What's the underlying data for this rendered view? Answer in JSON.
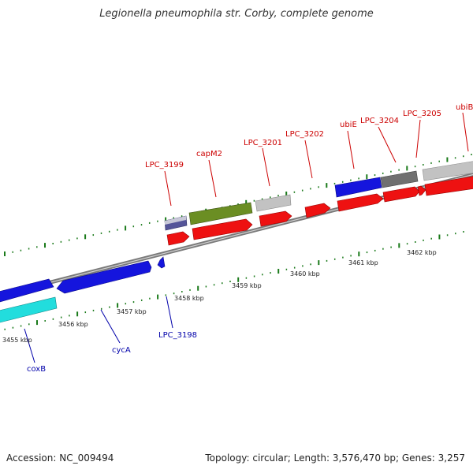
{
  "title": "Legionella pneumophila str. Corby, complete genome",
  "footer": {
    "accession": "Accession: NC_009494",
    "summary": "Topology: circular; Length: 3,576,470 bp; Genes: 3,257"
  },
  "colors": {
    "backbone": "#8c8c8c",
    "tick": "#1a7a1a",
    "label_forward": "#cc0000",
    "label_reverse": "#0000aa",
    "cds_red": "#ee1111",
    "cds_blue": "#1515dd",
    "cds_cyan": "#22dddd",
    "cds_olive": "#6b8e23",
    "cds_grey": "#bbbbbb",
    "cds_darkgrey": "#707070",
    "cds_navy": "#555599"
  },
  "scale_labels": [
    "3455 kbp",
    "3456 kbp",
    "3457 kbp",
    "3458 kbp",
    "3459 kbp",
    "3460 kbp",
    "3461 kbp",
    "3462 kbp"
  ],
  "forward_gene_labels": [
    "LPC_3199",
    "capM2",
    "LPC_3201",
    "LPC_3202",
    "ubiE",
    "LPC_3204",
    "LPC_3205",
    "ubiB"
  ],
  "reverse_gene_labels": [
    "coxB",
    "cycA",
    "LPC_3198"
  ]
}
